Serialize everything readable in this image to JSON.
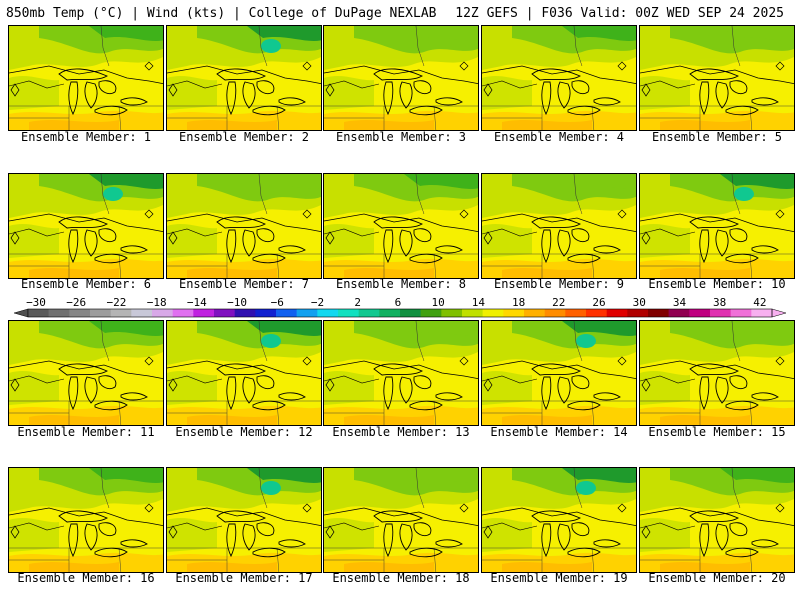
{
  "header": {
    "left": "850mb Temp (°C) | Wind (kts) | College of DuPage NEXLAB",
    "right": "12Z GEFS | F036 Valid: 00Z WED SEP 24 2025"
  },
  "members": [
    {
      "label": "Ensemble Member: 1",
      "variant": 0
    },
    {
      "label": "Ensemble Member: 2",
      "variant": 1
    },
    {
      "label": "Ensemble Member: 3",
      "variant": 2
    },
    {
      "label": "Ensemble Member: 4",
      "variant": 0
    },
    {
      "label": "Ensemble Member: 5",
      "variant": 2
    },
    {
      "label": "Ensemble Member: 6",
      "variant": 1
    },
    {
      "label": "Ensemble Member: 7",
      "variant": 2
    },
    {
      "label": "Ensemble Member: 8",
      "variant": 0
    },
    {
      "label": "Ensemble Member: 9",
      "variant": 2
    },
    {
      "label": "Ensemble Member: 10",
      "variant": 1
    },
    {
      "label": "Ensemble Member: 11",
      "variant": 0
    },
    {
      "label": "Ensemble Member: 12",
      "variant": 1
    },
    {
      "label": "Ensemble Member: 13",
      "variant": 2
    },
    {
      "label": "Ensemble Member: 14",
      "variant": 1
    },
    {
      "label": "Ensemble Member: 15",
      "variant": 2
    },
    {
      "label": "Ensemble Member: 16",
      "variant": 0
    },
    {
      "label": "Ensemble Member: 17",
      "variant": 1
    },
    {
      "label": "Ensemble Member: 18",
      "variant": 2
    },
    {
      "label": "Ensemble Member: 19",
      "variant": 1
    },
    {
      "label": "Ensemble Member: 20",
      "variant": 0
    }
  ],
  "colorbar": {
    "labels": [
      "−30",
      "−26",
      "−22",
      "−18",
      "−14",
      "−10",
      "−6",
      "−2",
      "2",
      "6",
      "10",
      "14",
      "18",
      "22",
      "26",
      "30",
      "34",
      "38",
      "42"
    ],
    "colors": [
      "#5a5a5a",
      "#707070",
      "#868686",
      "#9c9c9c",
      "#b4b4b4",
      "#c8c8d8",
      "#d8a8e8",
      "#e070f0",
      "#c020e0",
      "#8010c0",
      "#3010b0",
      "#1020d0",
      "#1060f0",
      "#10a0f0",
      "#10d8f0",
      "#10e0c0",
      "#10c890",
      "#10b060",
      "#109040",
      "#40a010",
      "#80c000",
      "#c0e000",
      "#f0f000",
      "#ffd800",
      "#ffb000",
      "#ff8c00",
      "#ff6000",
      "#ff3000",
      "#e00000",
      "#b00000",
      "#800000",
      "#900050",
      "#c00080",
      "#e030b0",
      "#f070d8",
      "#f8b0f0"
    ],
    "left_arrow_color": "#505050",
    "right_arrow_color": "#f8b0f0"
  },
  "palette": {
    "dark_green": "#1f9a2c",
    "green": "#3fb21a",
    "mid_green": "#7fca10",
    "yellow_green": "#c8e000",
    "yellow": "#f6f000",
    "gold": "#ffd200",
    "orange": "#ffb800",
    "teal": "#10c890",
    "outline": "#000000"
  }
}
